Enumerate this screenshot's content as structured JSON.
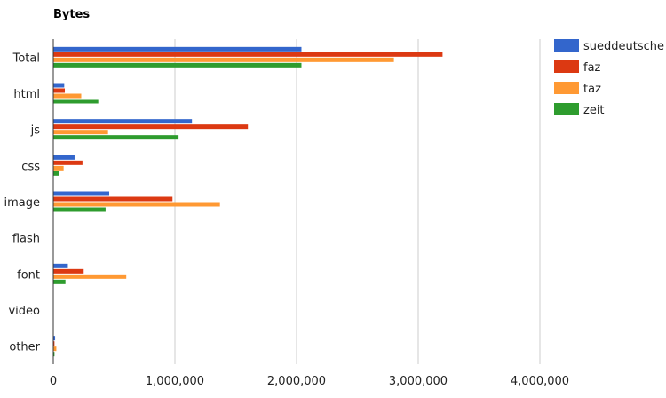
{
  "chart_data": {
    "type": "bar",
    "orientation": "horizontal",
    "title": "Bytes",
    "xlabel": "",
    "ylabel": "",
    "xlim": [
      0,
      4000000
    ],
    "x_ticks": [
      0,
      1000000,
      2000000,
      3000000,
      4000000
    ],
    "x_tick_labels": [
      "0",
      "1,000,000",
      "2,000,000",
      "3,000,000",
      "4,000,000"
    ],
    "grid": true,
    "legend_position": "right",
    "categories": [
      "Total",
      "html",
      "js",
      "css",
      "image",
      "flash",
      "font",
      "video",
      "other"
    ],
    "series": [
      {
        "name": "sueddeutsche",
        "color": "#3366cc",
        "values": [
          2040000,
          90000,
          1140000,
          175000,
          460000,
          0,
          120000,
          0,
          15000
        ]
      },
      {
        "name": "faz",
        "color": "#dc3912",
        "values": [
          3200000,
          95000,
          1600000,
          240000,
          980000,
          0,
          250000,
          0,
          10000
        ]
      },
      {
        "name": "taz",
        "color": "#ff9933",
        "values": [
          2800000,
          230000,
          450000,
          85000,
          1370000,
          0,
          600000,
          0,
          25000
        ]
      },
      {
        "name": "zeit",
        "color": "#2e9c2e",
        "values": [
          2040000,
          370000,
          1030000,
          50000,
          430000,
          0,
          100000,
          0,
          10000
        ]
      }
    ]
  }
}
